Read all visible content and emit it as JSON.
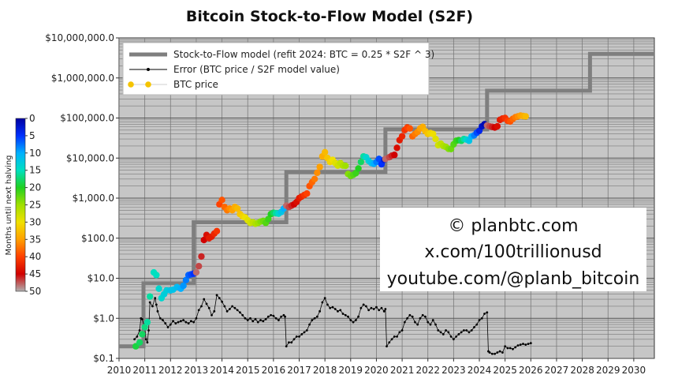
{
  "chart_data": {
    "type": "scatter",
    "title": "Bitcoin Stock-to-Flow Model (S2F)",
    "y_scale": "log",
    "ylim": [
      0.1,
      10000000
    ],
    "xlim": [
      2010,
      2030.8
    ],
    "grid": true,
    "legend_position": "top-left",
    "x_ticks": [
      "2010",
      "2011",
      "2012",
      "2013",
      "2014",
      "2015",
      "2016",
      "2017",
      "2018",
      "2019",
      "2020",
      "2021",
      "2022",
      "2023",
      "2024",
      "2025",
      "2026",
      "2027",
      "2028",
      "2029",
      "2030"
    ],
    "y_ticks": [
      {
        "value": 0.1,
        "label": "$0.1"
      },
      {
        "value": 1,
        "label": "$1.0"
      },
      {
        "value": 10,
        "label": "$10.0"
      },
      {
        "value": 100,
        "label": "$100.0"
      },
      {
        "value": 1000,
        "label": "$1,000.0"
      },
      {
        "value": 10000,
        "label": "$10,000.0"
      },
      {
        "value": 100000,
        "label": "$100,000.0"
      },
      {
        "value": 1000000,
        "label": "$1,000,000.0"
      },
      {
        "value": 10000000,
        "label": "$10,000,000.0"
      }
    ],
    "legend": [
      {
        "label": "Stock-to-Flow model (refit 2024:  BTC = 0.25 * S2F ^ 3)",
        "style": "thick-line",
        "color": "#7f7f7f"
      },
      {
        "label": "Error (BTC price / S2F model value)",
        "style": "line-dot",
        "color": "#000000"
      },
      {
        "label": "BTC price",
        "style": "dot",
        "color": "#f5c400"
      }
    ],
    "colorbar": {
      "label": "Months until next halving",
      "ticks": [
        "0",
        "5",
        "10",
        "15",
        "20",
        "25",
        "30",
        "35",
        "40",
        "45",
        "50"
      ],
      "min": 0,
      "max": 50,
      "stops": [
        "#0000a0",
        "#0030ff",
        "#00b0ff",
        "#00e0c0",
        "#20d020",
        "#a0e000",
        "#f0e000",
        "#ffa000",
        "#ff4000",
        "#d00000",
        "#b0b0b0"
      ]
    },
    "s2f_model": {
      "color": "#7f7f7f",
      "steps": [
        {
          "x_start": 2010.0,
          "x_end": 2010.95,
          "y": 0.2
        },
        {
          "x_start": 2010.95,
          "x_end": 2012.9,
          "y": 7.5
        },
        {
          "x_start": 2012.9,
          "x_end": 2016.5,
          "y": 250
        },
        {
          "x_start": 2016.5,
          "x_end": 2020.35,
          "y": 4500
        },
        {
          "x_start": 2020.35,
          "x_end": 2024.3,
          "y": 52000
        },
        {
          "x_start": 2024.3,
          "x_end": 2028.3,
          "y": 480000
        },
        {
          "x_start": 2028.3,
          "x_end": 2030.8,
          "y": 4000000
        }
      ]
    },
    "error_series": {
      "name": "Error (BTC price / S2F model value)",
      "x": [
        2010.6,
        2010.7,
        2010.8,
        2010.85,
        2010.9,
        2011.0,
        2011.05,
        2011.1,
        2011.15,
        2011.2,
        2011.3,
        2011.4,
        2011.45,
        2011.5,
        2011.6,
        2011.7,
        2011.8,
        2011.9,
        2012.0,
        2012.1,
        2012.2,
        2012.3,
        2012.4,
        2012.5,
        2012.6,
        2012.7,
        2012.8,
        2012.9,
        2013.0,
        2013.1,
        2013.2,
        2013.3,
        2013.4,
        2013.5,
        2013.6,
        2013.7,
        2013.8,
        2013.9,
        2014.0,
        2014.1,
        2014.2,
        2014.3,
        2014.4,
        2014.5,
        2014.6,
        2014.7,
        2014.8,
        2014.9,
        2015.0,
        2015.1,
        2015.2,
        2015.3,
        2015.4,
        2015.5,
        2015.6,
        2015.7,
        2015.8,
        2015.9,
        2016.0,
        2016.1,
        2016.2,
        2016.3,
        2016.4,
        2016.45,
        2016.5,
        2016.6,
        2016.7,
        2016.8,
        2016.9,
        2017.0,
        2017.1,
        2017.2,
        2017.3,
        2017.4,
        2017.5,
        2017.6,
        2017.7,
        2017.8,
        2017.9,
        2018.0,
        2018.1,
        2018.2,
        2018.3,
        2018.4,
        2018.5,
        2018.6,
        2018.7,
        2018.8,
        2018.9,
        2019.0,
        2019.1,
        2019.2,
        2019.3,
        2019.4,
        2019.5,
        2019.6,
        2019.7,
        2019.8,
        2019.9,
        2020.0,
        2020.1,
        2020.2,
        2020.3,
        2020.35,
        2020.4,
        2020.5,
        2020.6,
        2020.7,
        2020.8,
        2020.9,
        2021.0,
        2021.1,
        2021.2,
        2021.3,
        2021.4,
        2021.5,
        2021.6,
        2021.7,
        2021.8,
        2021.9,
        2022.0,
        2022.1,
        2022.2,
        2022.3,
        2022.4,
        2022.5,
        2022.6,
        2022.7,
        2022.8,
        2022.9,
        2023.0,
        2023.1,
        2023.2,
        2023.3,
        2023.4,
        2023.5,
        2023.6,
        2023.7,
        2023.8,
        2023.9,
        2024.0,
        2024.1,
        2024.2,
        2024.3,
        2024.35,
        2024.4,
        2024.5,
        2024.6,
        2024.7,
        2024.8,
        2024.9,
        2025.0,
        2025.1,
        2025.2,
        2025.3,
        2025.4,
        2025.5,
        2025.6,
        2025.7,
        2025.8,
        2025.9,
        2026.0
      ],
      "y": [
        0.3,
        0.35,
        0.5,
        1.0,
        0.95,
        0.6,
        0.3,
        0.25,
        0.5,
        2.5,
        2.0,
        3.2,
        2.2,
        1.5,
        1.0,
        0.9,
        0.75,
        0.6,
        0.7,
        0.85,
        0.75,
        0.8,
        0.85,
        0.9,
        0.8,
        0.75,
        0.85,
        0.8,
        1.0,
        1.6,
        2.0,
        3.0,
        2.3,
        1.8,
        1.2,
        1.5,
        3.8,
        3.2,
        2.6,
        2.0,
        1.5,
        1.7,
        2.0,
        1.8,
        1.6,
        1.4,
        1.2,
        1.0,
        0.9,
        1.0,
        0.85,
        0.95,
        0.8,
        0.9,
        0.85,
        0.95,
        1.1,
        1.2,
        1.15,
        1.0,
        0.9,
        1.1,
        1.2,
        1.1,
        0.2,
        0.25,
        0.25,
        0.3,
        0.35,
        0.35,
        0.4,
        0.45,
        0.5,
        0.7,
        0.9,
        1.0,
        1.1,
        1.5,
        2.5,
        3.2,
        2.2,
        1.8,
        1.9,
        1.7,
        1.5,
        1.6,
        1.3,
        1.2,
        1.1,
        0.9,
        0.8,
        0.9,
        1.1,
        1.8,
        2.2,
        2.0,
        1.6,
        1.8,
        1.7,
        1.9,
        1.6,
        1.8,
        1.5,
        1.7,
        0.2,
        0.25,
        0.3,
        0.35,
        0.35,
        0.45,
        0.5,
        0.8,
        1.0,
        1.2,
        1.1,
        0.8,
        0.7,
        1.0,
        1.2,
        1.1,
        0.8,
        0.7,
        0.9,
        0.7,
        0.5,
        0.45,
        0.4,
        0.5,
        0.45,
        0.35,
        0.3,
        0.35,
        0.4,
        0.45,
        0.5,
        0.5,
        0.45,
        0.5,
        0.6,
        0.7,
        0.9,
        1.0,
        1.3,
        1.4,
        0.15,
        0.14,
        0.13,
        0.13,
        0.14,
        0.15,
        0.14,
        0.2,
        0.18,
        0.18,
        0.17,
        0.19,
        0.21,
        0.22,
        0.23,
        0.22,
        0.23,
        0.24
      ]
    },
    "btc_price_series": {
      "name": "BTC price",
      "points": [
        [
          2010.65,
          0.2,
          19
        ],
        [
          2010.8,
          0.25,
          18
        ],
        [
          2010.9,
          0.4,
          18
        ],
        [
          2011.0,
          0.6,
          17
        ],
        [
          2011.1,
          0.8,
          16
        ],
        [
          2011.2,
          3.5,
          16
        ],
        [
          2011.35,
          14,
          15
        ],
        [
          2011.45,
          12,
          15
        ],
        [
          2011.55,
          5.5,
          14
        ],
        [
          2011.65,
          3.2,
          14
        ],
        [
          2011.75,
          4.0,
          13
        ],
        [
          2011.85,
          5.0,
          13
        ],
        [
          2012.0,
          5.0,
          12
        ],
        [
          2012.1,
          5.2,
          12
        ],
        [
          2012.25,
          6.0,
          11
        ],
        [
          2012.4,
          5.5,
          10
        ],
        [
          2012.5,
          6.5,
          9
        ],
        [
          2012.6,
          9,
          8
        ],
        [
          2012.7,
          12,
          7
        ],
        [
          2012.8,
          12.5,
          6
        ],
        [
          2012.9,
          13,
          5
        ],
        [
          2013.0,
          14,
          48
        ],
        [
          2013.1,
          20,
          47
        ],
        [
          2013.2,
          35,
          46
        ],
        [
          2013.3,
          90,
          45
        ],
        [
          2013.4,
          120,
          44
        ],
        [
          2013.5,
          100,
          43
        ],
        [
          2013.6,
          110,
          43
        ],
        [
          2013.7,
          130,
          42
        ],
        [
          2013.8,
          150,
          41
        ],
        [
          2013.9,
          700,
          40
        ],
        [
          2014.0,
          900,
          39
        ],
        [
          2014.1,
          600,
          38
        ],
        [
          2014.2,
          500,
          37
        ],
        [
          2014.3,
          550,
          36
        ],
        [
          2014.4,
          500,
          35
        ],
        [
          2014.5,
          600,
          34
        ],
        [
          2014.6,
          550,
          33
        ],
        [
          2014.7,
          400,
          32
        ],
        [
          2014.8,
          350,
          31
        ],
        [
          2014.9,
          330,
          30
        ],
        [
          2015.0,
          280,
          29
        ],
        [
          2015.1,
          240,
          28
        ],
        [
          2015.2,
          250,
          27
        ],
        [
          2015.3,
          230,
          26
        ],
        [
          2015.4,
          240,
          25
        ],
        [
          2015.5,
          260,
          24
        ],
        [
          2015.6,
          270,
          23
        ],
        [
          2015.7,
          240,
          22
        ],
        [
          2015.8,
          300,
          21
        ],
        [
          2015.9,
          400,
          20
        ],
        [
          2016.0,
          430,
          18
        ],
        [
          2016.1,
          420,
          16
        ],
        [
          2016.2,
          410,
          14
        ],
        [
          2016.3,
          450,
          12
        ],
        [
          2016.4,
          550,
          10
        ],
        [
          2016.5,
          650,
          48
        ],
        [
          2016.6,
          600,
          47
        ],
        [
          2016.7,
          650,
          46
        ],
        [
          2016.8,
          700,
          45
        ],
        [
          2016.9,
          800,
          44
        ],
        [
          2017.0,
          1000,
          43
        ],
        [
          2017.1,
          1100,
          42
        ],
        [
          2017.2,
          1200,
          41
        ],
        [
          2017.3,
          1300,
          40
        ],
        [
          2017.4,
          2000,
          39
        ],
        [
          2017.5,
          2500,
          38
        ],
        [
          2017.6,
          3000,
          37
        ],
        [
          2017.7,
          4300,
          36
        ],
        [
          2017.8,
          6000,
          35
        ],
        [
          2017.9,
          11000,
          34
        ],
        [
          2018.0,
          14000,
          33
        ],
        [
          2018.1,
          10000,
          32
        ],
        [
          2018.2,
          8000,
          31
        ],
        [
          2018.3,
          9000,
          30
        ],
        [
          2018.4,
          7500,
          29
        ],
        [
          2018.5,
          6500,
          28
        ],
        [
          2018.6,
          7500,
          27
        ],
        [
          2018.7,
          6500,
          26
        ],
        [
          2018.8,
          6400,
          25
        ],
        [
          2018.9,
          4000,
          24
        ],
        [
          2019.0,
          3600,
          23
        ],
        [
          2019.1,
          3800,
          22
        ],
        [
          2019.2,
          4200,
          21
        ],
        [
          2019.3,
          5500,
          20
        ],
        [
          2019.4,
          8000,
          18
        ],
        [
          2019.5,
          11000,
          16
        ],
        [
          2019.6,
          10500,
          14
        ],
        [
          2019.7,
          8500,
          13
        ],
        [
          2019.8,
          7500,
          12
        ],
        [
          2019.9,
          7200,
          10
        ],
        [
          2020.0,
          8000,
          8
        ],
        [
          2020.1,
          9500,
          6
        ],
        [
          2020.2,
          7000,
          5
        ],
        [
          2020.3,
          9000,
          3
        ],
        [
          2020.35,
          9500,
          48
        ],
        [
          2020.5,
          10500,
          47
        ],
        [
          2020.6,
          11500,
          46
        ],
        [
          2020.7,
          12000,
          45
        ],
        [
          2020.8,
          18000,
          44
        ],
        [
          2020.9,
          28000,
          43
        ],
        [
          2021.0,
          35000,
          42
        ],
        [
          2021.1,
          50000,
          41
        ],
        [
          2021.2,
          58000,
          40
        ],
        [
          2021.3,
          55000,
          39
        ],
        [
          2021.4,
          35000,
          38
        ],
        [
          2021.5,
          40000,
          37
        ],
        [
          2021.6,
          45000,
          36
        ],
        [
          2021.7,
          55000,
          35
        ],
        [
          2021.8,
          60000,
          34
        ],
        [
          2021.9,
          47000,
          33
        ],
        [
          2022.0,
          40000,
          32
        ],
        [
          2022.1,
          42000,
          31
        ],
        [
          2022.2,
          40000,
          30
        ],
        [
          2022.3,
          30000,
          29
        ],
        [
          2022.4,
          21000,
          28
        ],
        [
          2022.5,
          23000,
          27
        ],
        [
          2022.6,
          20000,
          26
        ],
        [
          2022.7,
          19000,
          25
        ],
        [
          2022.8,
          17000,
          24
        ],
        [
          2022.9,
          16800,
          23
        ],
        [
          2023.0,
          22000,
          22
        ],
        [
          2023.1,
          27000,
          21
        ],
        [
          2023.2,
          28000,
          20
        ],
        [
          2023.3,
          27000,
          18
        ],
        [
          2023.4,
          30000,
          16
        ],
        [
          2023.5,
          29000,
          14
        ],
        [
          2023.6,
          27000,
          12
        ],
        [
          2023.7,
          35000,
          10
        ],
        [
          2023.8,
          37000,
          8
        ],
        [
          2023.9,
          43000,
          6
        ],
        [
          2024.0,
          48000,
          4
        ],
        [
          2024.1,
          62000,
          2
        ],
        [
          2024.2,
          70000,
          1
        ],
        [
          2024.3,
          65000,
          48
        ],
        [
          2024.4,
          62000,
          47
        ],
        [
          2024.5,
          60000,
          46
        ],
        [
          2024.6,
          58000,
          45
        ],
        [
          2024.7,
          62000,
          44
        ],
        [
          2024.8,
          90000,
          43
        ],
        [
          2024.9,
          97000,
          42
        ],
        [
          2025.0,
          100000,
          41
        ],
        [
          2025.1,
          85000,
          40
        ],
        [
          2025.2,
          82000,
          39
        ],
        [
          2025.3,
          95000,
          38
        ],
        [
          2025.4,
          105000,
          37
        ],
        [
          2025.5,
          110000,
          36
        ],
        [
          2025.6,
          115000,
          35
        ],
        [
          2025.7,
          112000,
          34
        ],
        [
          2025.8,
          110000,
          33
        ]
      ]
    },
    "watermark": [
      "© planbtc.com",
      "x.com/100trillionusd",
      "youtube.com/@planb_bitcoin"
    ]
  }
}
